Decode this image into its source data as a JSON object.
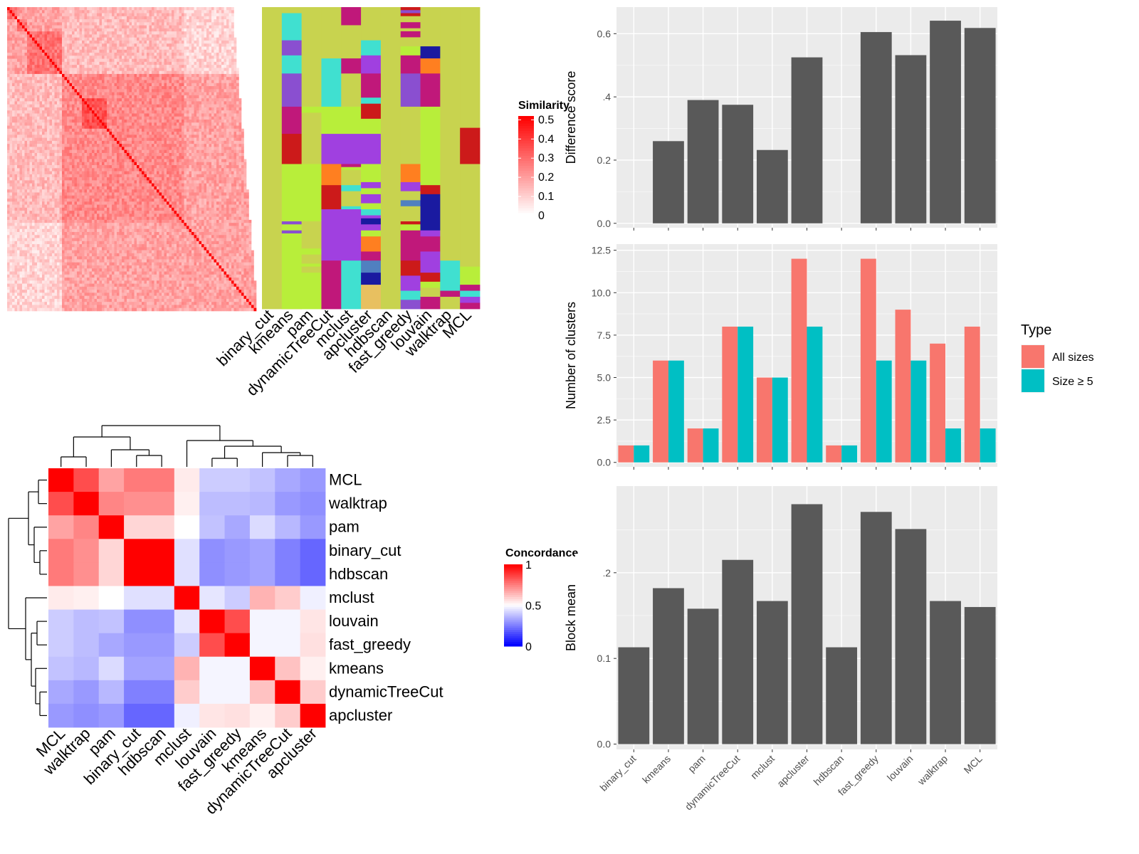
{
  "methods": [
    "binary_cut",
    "kmeans",
    "pam",
    "dynamicTreeCut",
    "mclust",
    "apcluster",
    "hdbscan",
    "fast_greedy",
    "louvain",
    "walktrap",
    "MCL"
  ],
  "chart_data": [
    {
      "type": "heatmap",
      "name": "similarity-heatmap",
      "legend_title": "Similarity",
      "legend_ticks": [
        0,
        0.1,
        0.2,
        0.3,
        0.4,
        0.5
      ],
      "color_low": "#ffffff",
      "color_high": "#ff0000",
      "size": 100,
      "blocks": [
        [
          0,
          1,
          2,
          3
        ],
        [
          4,
          5,
          6,
          7
        ],
        [
          8,
          9,
          10,
          11,
          12,
          13,
          14,
          15,
          16,
          17,
          18,
          19,
          20,
          21
        ],
        [
          22,
          23,
          24,
          25,
          26,
          27,
          28,
          29,
          30,
          31,
          32,
          33,
          34,
          35,
          36,
          37,
          38,
          39,
          40,
          41,
          42,
          43,
          44,
          45,
          46,
          47,
          48,
          49,
          50,
          51,
          52,
          53,
          54,
          55,
          56,
          57,
          58,
          59,
          60,
          61,
          62,
          63,
          64,
          65,
          66,
          67,
          68,
          69,
          70,
          71,
          72,
          73,
          74,
          75,
          76,
          77,
          78,
          79,
          80,
          81,
          82,
          83,
          84,
          85,
          86,
          87,
          88,
          89,
          90,
          91,
          92,
          93,
          94,
          95,
          96,
          97,
          98,
          99
        ]
      ]
    },
    {
      "type": "heatmap",
      "name": "cluster-label-heatmap",
      "columns": [
        "binary_cut",
        "kmeans",
        "pam",
        "dynamicTreeCut",
        "mclust",
        "apcluster",
        "hdbscan",
        "fast_greedy",
        "louvain",
        "walktrap",
        "MCL"
      ],
      "palette": [
        "#c8d34f",
        "#40e0d0",
        "#8a4fd0",
        "#c0187a",
        "#cc1a1a",
        "#b8ee3a",
        "#ff7f20",
        "#1a1aa0",
        "#e8c060",
        "#5080c0",
        "#a040e0"
      ]
    },
    {
      "type": "heatmap",
      "name": "concordance-heatmap",
      "legend_title": "Concordance",
      "legend_ticks": [
        0,
        0.5,
        1
      ],
      "color_low": "#0000ff",
      "color_mid": "#ffffff",
      "color_high": "#ff0000",
      "rows": [
        "MCL",
        "walktrap",
        "pam",
        "binary_cut",
        "hdbscan",
        "mclust",
        "louvain",
        "fast_greedy",
        "kmeans",
        "dynamicTreeCut",
        "apcluster"
      ],
      "columns": [
        "MCL",
        "walktrap",
        "pam",
        "binary_cut",
        "hdbscan",
        "mclust",
        "louvain",
        "fast_greedy",
        "kmeans",
        "dynamicTreeCut",
        "apcluster"
      ],
      "values": [
        [
          1.0,
          0.85,
          0.68,
          0.76,
          0.76,
          0.54,
          0.4,
          0.4,
          0.38,
          0.33,
          0.3
        ],
        [
          0.85,
          1.0,
          0.74,
          0.72,
          0.72,
          0.53,
          0.37,
          0.37,
          0.36,
          0.3,
          0.28
        ],
        [
          0.68,
          0.74,
          1.0,
          0.58,
          0.58,
          0.5,
          0.38,
          0.33,
          0.43,
          0.36,
          0.3
        ],
        [
          0.76,
          0.72,
          0.58,
          1.0,
          1.0,
          0.44,
          0.28,
          0.3,
          0.32,
          0.25,
          0.2
        ],
        [
          0.76,
          0.72,
          0.58,
          1.0,
          1.0,
          0.44,
          0.28,
          0.3,
          0.32,
          0.25,
          0.2
        ],
        [
          0.54,
          0.53,
          0.5,
          0.44,
          0.44,
          1.0,
          0.45,
          0.4,
          0.65,
          0.6,
          0.47
        ],
        [
          0.4,
          0.37,
          0.38,
          0.28,
          0.28,
          0.45,
          1.0,
          0.85,
          0.48,
          0.48,
          0.55
        ],
        [
          0.4,
          0.37,
          0.33,
          0.3,
          0.3,
          0.4,
          0.85,
          1.0,
          0.48,
          0.48,
          0.56
        ],
        [
          0.38,
          0.36,
          0.43,
          0.32,
          0.32,
          0.65,
          0.48,
          0.48,
          1.0,
          0.62,
          0.53
        ],
        [
          0.33,
          0.3,
          0.36,
          0.25,
          0.25,
          0.6,
          0.48,
          0.48,
          0.62,
          1.0,
          0.6
        ],
        [
          0.3,
          0.28,
          0.3,
          0.2,
          0.2,
          0.47,
          0.55,
          0.56,
          0.53,
          0.6,
          1.0
        ]
      ]
    },
    {
      "type": "bar",
      "name": "difference-score",
      "categories": [
        "binary_cut",
        "kmeans",
        "pam",
        "dynamicTreeCut",
        "mclust",
        "apcluster",
        "hdbscan",
        "fast_greedy",
        "louvain",
        "walktrap",
        "MCL"
      ],
      "values": [
        0,
        0.26,
        0.39,
        0.375,
        0.232,
        0.525,
        0,
        0.605,
        0.532,
        0.641,
        0.618
      ],
      "ylabel": "Difference score",
      "ylim": [
        0,
        0.67
      ],
      "yticks": [
        0.0,
        0.2,
        0.4,
        0.6
      ],
      "ytick_labels": [
        "0.0",
        "0.2",
        "0.4",
        "0.6"
      ],
      "color": "#595959"
    },
    {
      "type": "bar",
      "name": "number-of-clusters",
      "categories": [
        "binary_cut",
        "kmeans",
        "pam",
        "dynamicTreeCut",
        "mclust",
        "apcluster",
        "hdbscan",
        "fast_greedy",
        "louvain",
        "walktrap",
        "MCL"
      ],
      "series": [
        {
          "name": "All sizes",
          "values": [
            1,
            6,
            2,
            8,
            5,
            12,
            1,
            12,
            9,
            7,
            8
          ],
          "color": "#f8766d"
        },
        {
          "name": "Size ≥ 5",
          "values": [
            1,
            6,
            2,
            8,
            5,
            8,
            1,
            6,
            6,
            2,
            2
          ],
          "color": "#00bfc4"
        }
      ],
      "ylabel": "Number of clusters",
      "ylim": [
        0,
        12.6
      ],
      "yticks": [
        0,
        2.5,
        5,
        7.5,
        10,
        12.5
      ],
      "ytick_labels": [
        "0.0",
        "2.5",
        "5.0",
        "7.5",
        "10.0",
        "12.5"
      ],
      "legend_title": "Type",
      "legend_position": "right"
    },
    {
      "type": "bar",
      "name": "block-mean",
      "categories": [
        "binary_cut",
        "kmeans",
        "pam",
        "dynamicTreeCut",
        "mclust",
        "apcluster",
        "hdbscan",
        "fast_greedy",
        "louvain",
        "walktrap",
        "MCL"
      ],
      "values": [
        0.113,
        0.182,
        0.158,
        0.215,
        0.167,
        0.28,
        0.113,
        0.271,
        0.251,
        0.167,
        0.16
      ],
      "ylabel": "Block mean",
      "ylim": [
        0,
        0.295
      ],
      "yticks": [
        0.0,
        0.1,
        0.2
      ],
      "ytick_labels": [
        "0.0",
        "0.1",
        "0.2"
      ],
      "color": "#595959"
    }
  ]
}
